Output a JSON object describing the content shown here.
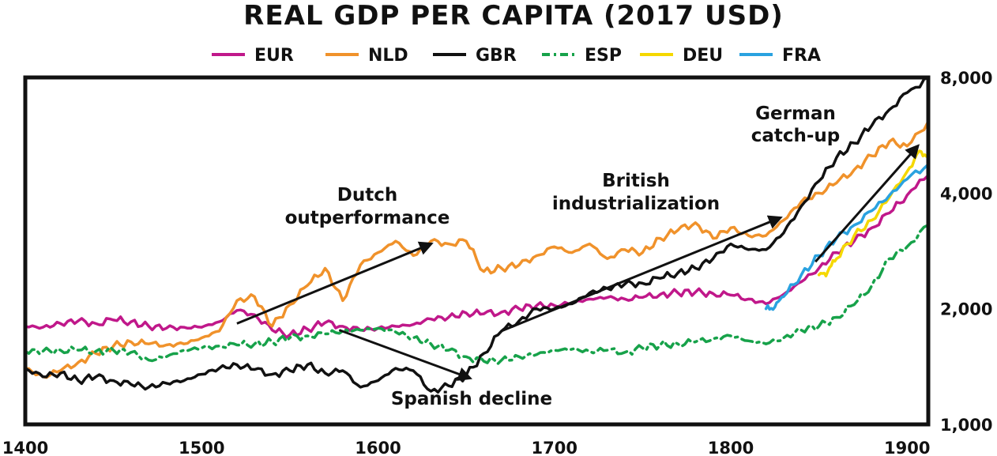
{
  "chart_data": {
    "type": "line",
    "title": "REAL GDP PER CAPITA (2017 USD)",
    "xlabel": "",
    "ylabel": "",
    "x_scale": "linear",
    "y_scale": "log",
    "xlim": [
      1400,
      1912
    ],
    "ylim": [
      1000,
      8000
    ],
    "x_ticks": [
      1400,
      1500,
      1600,
      1700,
      1800,
      1900
    ],
    "x_tick_labels": [
      "1400",
      "1500",
      "1600",
      "1700",
      "1800",
      "1900"
    ],
    "y_ticks": [
      1000,
      2000,
      4000,
      8000
    ],
    "y_tick_labels": [
      "1,000",
      "2,000",
      "4,000",
      "8,000"
    ],
    "y_axis_side": "right",
    "grid": false,
    "legend_position": "top",
    "series": [
      {
        "name": "EUR",
        "color": "#c0188a",
        "dash": "solid",
        "points": [
          [
            1400,
            1800
          ],
          [
            1410,
            1790
          ],
          [
            1420,
            1830
          ],
          [
            1430,
            1860
          ],
          [
            1440,
            1830
          ],
          [
            1450,
            1870
          ],
          [
            1460,
            1850
          ],
          [
            1470,
            1800
          ],
          [
            1480,
            1780
          ],
          [
            1490,
            1790
          ],
          [
            1500,
            1790
          ],
          [
            1510,
            1850
          ],
          [
            1520,
            1980
          ],
          [
            1530,
            1930
          ],
          [
            1540,
            1760
          ],
          [
            1550,
            1710
          ],
          [
            1560,
            1770
          ],
          [
            1570,
            1840
          ],
          [
            1580,
            1800
          ],
          [
            1590,
            1760
          ],
          [
            1600,
            1780
          ],
          [
            1610,
            1800
          ],
          [
            1620,
            1820
          ],
          [
            1630,
            1880
          ],
          [
            1640,
            1900
          ],
          [
            1650,
            1950
          ],
          [
            1660,
            1940
          ],
          [
            1670,
            1960
          ],
          [
            1680,
            2000
          ],
          [
            1690,
            2040
          ],
          [
            1700,
            2040
          ],
          [
            1710,
            2070
          ],
          [
            1720,
            2120
          ],
          [
            1730,
            2140
          ],
          [
            1740,
            2120
          ],
          [
            1750,
            2140
          ],
          [
            1760,
            2180
          ],
          [
            1770,
            2200
          ],
          [
            1780,
            2210
          ],
          [
            1790,
            2190
          ],
          [
            1800,
            2170
          ],
          [
            1810,
            2120
          ],
          [
            1820,
            2060
          ],
          [
            1830,
            2180
          ],
          [
            1840,
            2350
          ],
          [
            1850,
            2550
          ],
          [
            1860,
            2800
          ],
          [
            1870,
            3000
          ],
          [
            1880,
            3250
          ],
          [
            1890,
            3550
          ],
          [
            1900,
            3950
          ],
          [
            1912,
            4450
          ]
        ]
      },
      {
        "name": "NLD",
        "color": "#f0922b",
        "dash": "solid",
        "points": [
          [
            1400,
            1400
          ],
          [
            1410,
            1330
          ],
          [
            1420,
            1380
          ],
          [
            1430,
            1450
          ],
          [
            1440,
            1530
          ],
          [
            1450,
            1600
          ],
          [
            1460,
            1640
          ],
          [
            1470,
            1620
          ],
          [
            1480,
            1610
          ],
          [
            1490,
            1620
          ],
          [
            1500,
            1680
          ],
          [
            1510,
            1750
          ],
          [
            1520,
            2100
          ],
          [
            1530,
            2150
          ],
          [
            1540,
            1800
          ],
          [
            1550,
            2050
          ],
          [
            1560,
            2300
          ],
          [
            1570,
            2550
          ],
          [
            1580,
            2100
          ],
          [
            1590,
            2600
          ],
          [
            1600,
            2800
          ],
          [
            1610,
            3000
          ],
          [
            1620,
            2750
          ],
          [
            1630,
            3000
          ],
          [
            1640,
            2950
          ],
          [
            1650,
            3000
          ],
          [
            1660,
            2500
          ],
          [
            1670,
            2550
          ],
          [
            1680,
            2600
          ],
          [
            1690,
            2750
          ],
          [
            1700,
            2900
          ],
          [
            1710,
            2800
          ],
          [
            1720,
            2950
          ],
          [
            1730,
            2700
          ],
          [
            1740,
            2850
          ],
          [
            1750,
            2800
          ],
          [
            1760,
            3050
          ],
          [
            1770,
            3200
          ],
          [
            1780,
            3350
          ],
          [
            1790,
            3050
          ],
          [
            1800,
            3250
          ],
          [
            1810,
            3100
          ],
          [
            1820,
            3100
          ],
          [
            1830,
            3400
          ],
          [
            1840,
            3800
          ],
          [
            1850,
            4000
          ],
          [
            1860,
            4250
          ],
          [
            1870,
            4600
          ],
          [
            1880,
            5000
          ],
          [
            1890,
            5450
          ],
          [
            1900,
            5300
          ],
          [
            1912,
            6150
          ]
        ]
      },
      {
        "name": "GBR",
        "color": "#111111",
        "dash": "solid",
        "points": [
          [
            1400,
            1400
          ],
          [
            1410,
            1330
          ],
          [
            1420,
            1360
          ],
          [
            1430,
            1300
          ],
          [
            1440,
            1330
          ],
          [
            1450,
            1300
          ],
          [
            1460,
            1270
          ],
          [
            1470,
            1250
          ],
          [
            1480,
            1280
          ],
          [
            1490,
            1300
          ],
          [
            1500,
            1350
          ],
          [
            1510,
            1400
          ],
          [
            1520,
            1430
          ],
          [
            1530,
            1390
          ],
          [
            1540,
            1350
          ],
          [
            1550,
            1380
          ],
          [
            1560,
            1430
          ],
          [
            1570,
            1360
          ],
          [
            1580,
            1380
          ],
          [
            1590,
            1250
          ],
          [
            1600,
            1300
          ],
          [
            1610,
            1400
          ],
          [
            1620,
            1380
          ],
          [
            1630,
            1220
          ],
          [
            1640,
            1260
          ],
          [
            1650,
            1340
          ],
          [
            1660,
            1530
          ],
          [
            1670,
            1750
          ],
          [
            1680,
            1860
          ],
          [
            1690,
            2000
          ],
          [
            1700,
            2000
          ],
          [
            1710,
            2060
          ],
          [
            1720,
            2200
          ],
          [
            1730,
            2260
          ],
          [
            1740,
            2320
          ],
          [
            1750,
            2330
          ],
          [
            1760,
            2400
          ],
          [
            1770,
            2480
          ],
          [
            1780,
            2550
          ],
          [
            1790,
            2700
          ],
          [
            1800,
            2950
          ],
          [
            1810,
            2850
          ],
          [
            1820,
            2850
          ],
          [
            1830,
            3150
          ],
          [
            1840,
            3700
          ],
          [
            1850,
            4300
          ],
          [
            1860,
            4950
          ],
          [
            1870,
            5400
          ],
          [
            1880,
            6000
          ],
          [
            1890,
            6600
          ],
          [
            1900,
            7300
          ],
          [
            1912,
            8000
          ]
        ]
      },
      {
        "name": "ESP",
        "color": "#17a24a",
        "dash": "dashdot",
        "points": [
          [
            1400,
            1550
          ],
          [
            1410,
            1550
          ],
          [
            1420,
            1560
          ],
          [
            1430,
            1560
          ],
          [
            1440,
            1550
          ],
          [
            1450,
            1560
          ],
          [
            1460,
            1540
          ],
          [
            1470,
            1470
          ],
          [
            1480,
            1500
          ],
          [
            1490,
            1560
          ],
          [
            1500,
            1580
          ],
          [
            1510,
            1600
          ],
          [
            1520,
            1610
          ],
          [
            1530,
            1620
          ],
          [
            1540,
            1640
          ],
          [
            1550,
            1680
          ],
          [
            1560,
            1700
          ],
          [
            1570,
            1720
          ],
          [
            1580,
            1750
          ],
          [
            1590,
            1760
          ],
          [
            1600,
            1780
          ],
          [
            1610,
            1740
          ],
          [
            1620,
            1680
          ],
          [
            1630,
            1620
          ],
          [
            1640,
            1560
          ],
          [
            1650,
            1500
          ],
          [
            1660,
            1460
          ],
          [
            1670,
            1470
          ],
          [
            1680,
            1500
          ],
          [
            1690,
            1520
          ],
          [
            1700,
            1560
          ],
          [
            1710,
            1570
          ],
          [
            1720,
            1550
          ],
          [
            1730,
            1560
          ],
          [
            1740,
            1540
          ],
          [
            1750,
            1580
          ],
          [
            1760,
            1610
          ],
          [
            1770,
            1620
          ],
          [
            1780,
            1640
          ],
          [
            1790,
            1670
          ],
          [
            1800,
            1700
          ],
          [
            1810,
            1650
          ],
          [
            1820,
            1620
          ],
          [
            1830,
            1680
          ],
          [
            1840,
            1760
          ],
          [
            1850,
            1800
          ],
          [
            1860,
            1900
          ],
          [
            1870,
            2050
          ],
          [
            1880,
            2300
          ],
          [
            1890,
            2700
          ],
          [
            1900,
            2900
          ],
          [
            1912,
            3300
          ]
        ]
      },
      {
        "name": "DEU",
        "color": "#f5d800",
        "dash": "solid",
        "points": [
          [
            1850,
            2450
          ],
          [
            1855,
            2500
          ],
          [
            1860,
            2700
          ],
          [
            1870,
            3100
          ],
          [
            1880,
            3400
          ],
          [
            1890,
            3900
          ],
          [
            1900,
            4550
          ],
          [
            1907,
            5150
          ],
          [
            1912,
            5000
          ]
        ]
      },
      {
        "name": "FRA",
        "color": "#2aa2e0",
        "dash": "solid",
        "points": [
          [
            1820,
            2000
          ],
          [
            1825,
            2020
          ],
          [
            1830,
            2150
          ],
          [
            1840,
            2450
          ],
          [
            1850,
            2750
          ],
          [
            1860,
            3050
          ],
          [
            1870,
            3300
          ],
          [
            1880,
            3600
          ],
          [
            1890,
            3950
          ],
          [
            1900,
            4350
          ],
          [
            1912,
            4750
          ]
        ]
      }
    ],
    "annotations": [
      {
        "lines": [
          "Dutch",
          "outperformance"
        ],
        "arrow_from": [
          1520,
          1830
        ],
        "arrow_to": [
          1630,
          2950
        ]
      },
      {
        "lines": [
          "British",
          "industrialization"
        ],
        "arrow_from": [
          1670,
          1750
        ],
        "arrow_to": [
          1828,
          3450
        ]
      },
      {
        "lines": [
          "German",
          "catch-up"
        ],
        "arrow_from": [
          1848,
          2650
        ],
        "arrow_to": [
          1906,
          5300
        ]
      },
      {
        "lines": [
          "Spanish decline"
        ],
        "arrow_from": [
          1578,
          1760
        ],
        "arrow_to": [
          1652,
          1320
        ]
      }
    ]
  }
}
